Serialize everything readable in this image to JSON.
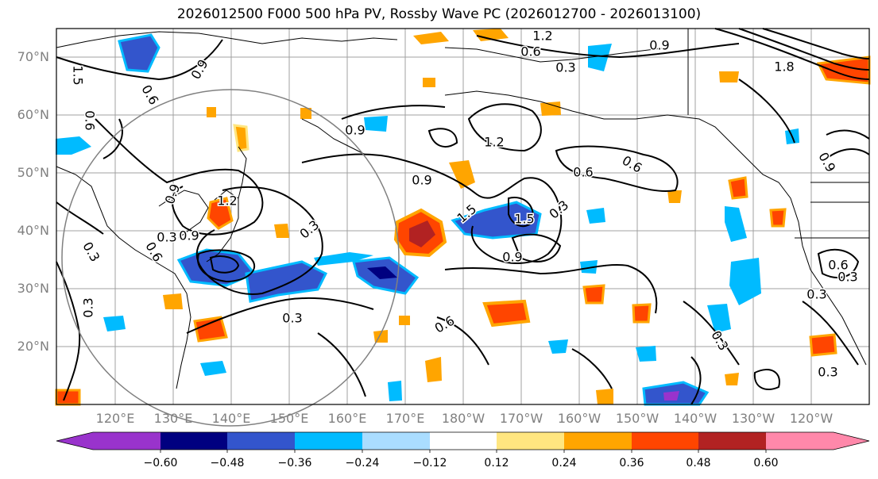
{
  "title": "2026012500 F000 500 hPa PV, Rossby Wave PC (2026012700 - 2026013100)",
  "lat_labels": [
    "70°N",
    "60°N",
    "50°N",
    "40°N",
    "30°N",
    "20°N"
  ],
  "lon_labels": [
    "120°E",
    "130°E",
    "140°E",
    "150°E",
    "160°E",
    "170°E",
    "180°W",
    "170°W",
    "160°W",
    "150°W",
    "140°W",
    "130°W",
    "120°W"
  ],
  "colorbar": {
    "ticks": [
      "−0.60",
      "−0.48",
      "−0.36",
      "−0.24",
      "−0.12",
      "0.12",
      "0.24",
      "0.36",
      "0.48",
      "0.60"
    ],
    "colors": [
      "#9933cc",
      "#000080",
      "#3355cc",
      "#00bbff",
      "#aaddff",
      "#ffffff",
      "#ffe680",
      "#ffa500",
      "#ff4500",
      "#b22222",
      "#ff88aa"
    ]
  },
  "contour_labels": [
    "1.2",
    "0.6",
    "0.9",
    "0.3",
    "0.9",
    "1.5",
    "0.6",
    "0.6",
    "0.9",
    "1.2",
    "0.6",
    "0.9",
    "0.6",
    "0.9",
    "1.2",
    "0.9",
    "1.5",
    "0.3",
    "0.9",
    "1.5",
    "0.6",
    "1.8",
    "0.3",
    "0.3",
    "0.3",
    "0.3",
    "0.6",
    "0.3",
    "0.3",
    "0.6",
    "0.3",
    "0.9",
    "0.3",
    "0.3"
  ]
}
